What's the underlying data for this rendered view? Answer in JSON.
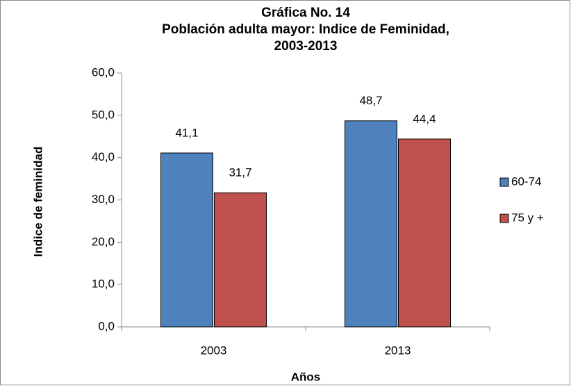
{
  "chart_data": {
    "type": "bar",
    "title": [
      "Gráfica No. 14",
      "Población adulta mayor: Indice de Feminidad,",
      "2003-2013"
    ],
    "xlabel": "Años",
    "ylabel": "Indice de feminidad",
    "categories": [
      "2003",
      "2013"
    ],
    "series": [
      {
        "name": "60-74",
        "color": "#4f81bd",
        "values": [
          41.1,
          48.7
        ],
        "value_labels": [
          "41,1",
          "48,7"
        ]
      },
      {
        "name": "75 y +",
        "color": "#c0504d",
        "values": [
          31.7,
          44.4
        ],
        "value_labels": [
          "31,7",
          "44,4"
        ]
      }
    ],
    "ylim": [
      0,
      60
    ],
    "yticks": [
      {
        "value": 0,
        "label": "0,0"
      },
      {
        "value": 10,
        "label": "10,0"
      },
      {
        "value": 20,
        "label": "20,0"
      },
      {
        "value": 30,
        "label": "30,0"
      },
      {
        "value": 40,
        "label": "40,0"
      },
      {
        "value": 50,
        "label": "50,0"
      },
      {
        "value": 60,
        "label": "60,0"
      }
    ],
    "legend": "right",
    "grid": false
  }
}
